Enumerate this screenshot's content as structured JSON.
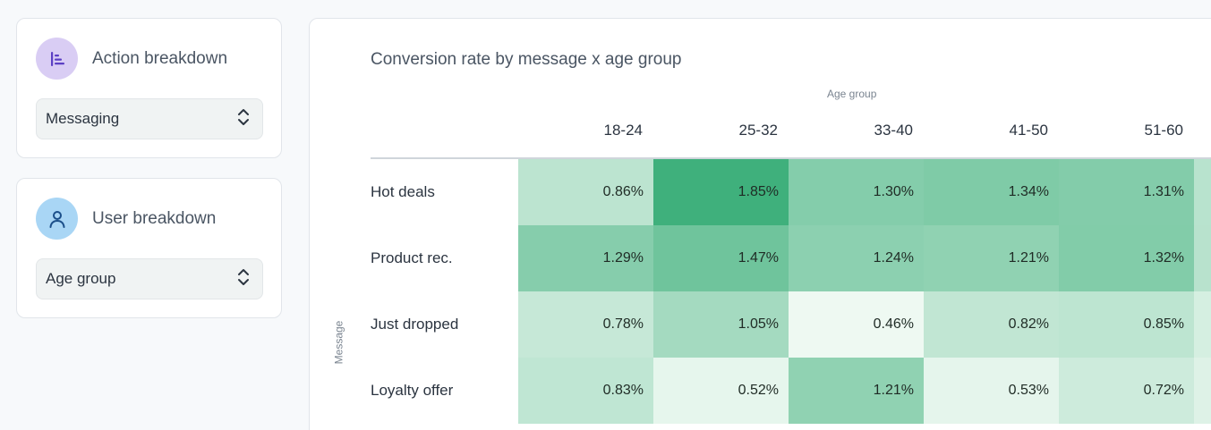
{
  "controls": {
    "action": {
      "title": "Action breakdown",
      "icon": "bar-chart-icon",
      "selected": "Messaging"
    },
    "user": {
      "title": "User breakdown",
      "icon": "user-icon",
      "selected": "Age group"
    }
  },
  "colors": {
    "low": "#eef9f2",
    "high": "#3fb07c"
  },
  "chart_data": {
    "type": "heatmap",
    "title": "Conversion rate by message x age group",
    "xlabel": "Age group",
    "ylabel": "Message",
    "x_categories": [
      "18-24",
      "25-32",
      "33-40",
      "41-50",
      "51-60"
    ],
    "y_categories": [
      "Hot deals",
      "Product rec.",
      "Just dropped",
      "Loyalty offer"
    ],
    "values": [
      [
        0.86,
        1.85,
        1.3,
        1.34,
        1.31
      ],
      [
        1.29,
        1.47,
        1.24,
        1.21,
        1.32
      ],
      [
        0.78,
        1.05,
        0.46,
        0.82,
        0.85
      ],
      [
        0.83,
        0.52,
        1.21,
        0.53,
        0.72
      ]
    ],
    "labels": [
      [
        "0.86%",
        "1.85%",
        "1.30%",
        "1.34%",
        "1.31%"
      ],
      [
        "1.29%",
        "1.47%",
        "1.24%",
        "1.21%",
        "1.32%"
      ],
      [
        "0.78%",
        "1.05%",
        "0.46%",
        "0.82%",
        "0.85%"
      ],
      [
        "0.83%",
        "0.52%",
        "1.21%",
        "0.53%",
        "0.72%"
      ]
    ],
    "value_unit": "%"
  }
}
